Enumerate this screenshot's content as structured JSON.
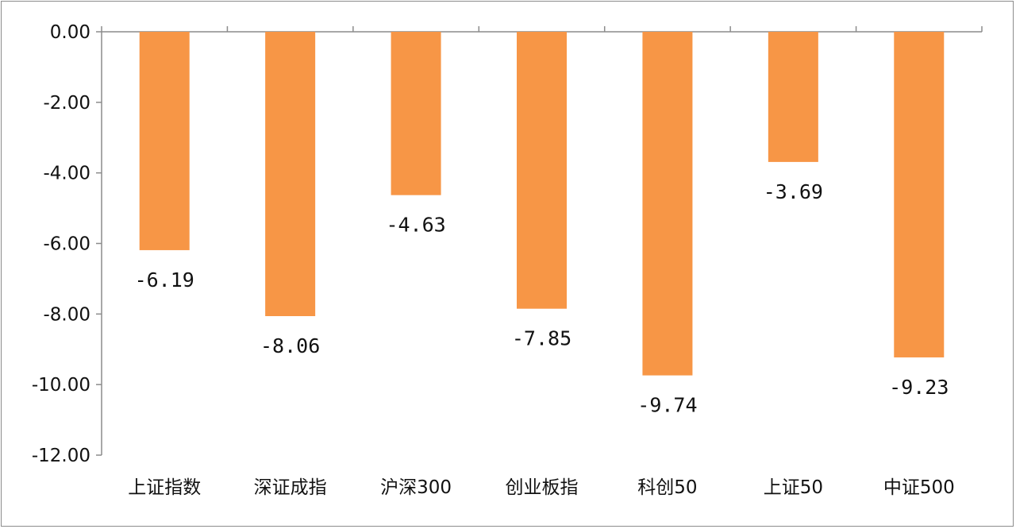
{
  "chart_data": {
    "type": "bar",
    "categories": [
      "上证指数",
      "深证成指",
      "沪深300",
      "创业板指",
      "科创50",
      "上证50",
      "中证500"
    ],
    "values": [
      -6.19,
      -8.06,
      -4.63,
      -7.85,
      -9.74,
      -3.69,
      -9.23
    ],
    "data_labels": [
      "-6.19",
      "-8.06",
      "-4.63",
      "-7.85",
      "-9.74",
      "-3.69",
      "-9.23"
    ],
    "yticks": [
      0,
      -2,
      -4,
      -6,
      -8,
      -10,
      -12
    ],
    "ytick_labels": [
      "0.00",
      "-2.00",
      "-4.00",
      "-6.00",
      "-8.00",
      "-10.00",
      "-12.00"
    ],
    "ylim": [
      -12,
      0
    ],
    "bar_color": "#f79646",
    "grid": false,
    "legend": "none"
  }
}
